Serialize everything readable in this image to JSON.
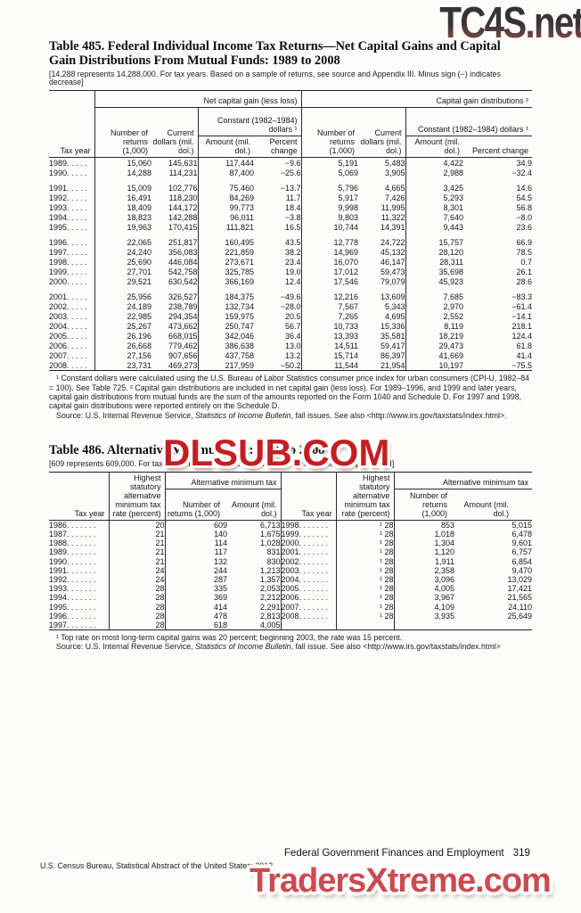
{
  "watermarks": {
    "top": "TC4S.net",
    "middle": "DLSUB.COM",
    "bottom": "TradersXtreme.com"
  },
  "accent_colors": {
    "watermark_red": "#c41e22",
    "watermark_dark_gradient_top": "#383335",
    "watermark_dark_gradient_bottom": "#97594b",
    "text": "#161616",
    "rule": "#2b2b2b"
  },
  "table485": {
    "title": "Table 485. Federal Individual Income Tax Returns—Net Capital Gains and Capital Gain Distributions From Mutual Funds: 1989 to 2008",
    "bracket_note": "[14,288 represents 14,288,000. For tax years. Based on a sample of returns, see source and Appendix III. Minus sign (−) indicates decrease]",
    "header": {
      "tax_year": "Tax year",
      "group1": "Net capital gain (less loss)",
      "group2": "Capital gain distributions ²",
      "number_of_returns": "Number of returns (1,000)",
      "current_dollars": "Current dollars (mil. dol.)",
      "constant_dollars": "Constant (1982–1984) dollars ¹",
      "amount": "Amount (mil. dol.)",
      "percent_change": "Percent change"
    },
    "groups": [
      [
        [
          "1989. . . . .",
          "15,060",
          "145,631",
          "117,444",
          "−9.6",
          "5,191",
          "5,483",
          "4,422",
          "34.9"
        ],
        [
          "1990. . . . .",
          "14,288",
          "114,231",
          "87,400",
          "−25.6",
          "5,069",
          "3,905",
          "2,988",
          "−32.4"
        ]
      ],
      [
        [
          "1991. . . . .",
          "15,009",
          "102,776",
          "75,460",
          "−13.7",
          "5,796",
          "4,665",
          "3,425",
          "14.6"
        ],
        [
          "1992. . . . .",
          "16,491",
          "118,230",
          "84,269",
          "11.7",
          "5,917",
          "7,426",
          "5,293",
          "54.5"
        ],
        [
          "1993. . . . .",
          "18,409",
          "144,172",
          "99,773",
          "18.4",
          "9,998",
          "11,995",
          "8,301",
          "56.8"
        ],
        [
          "1994. . . . .",
          "18,823",
          "142,288",
          "96,011",
          "−3.8",
          "9,803",
          "11,322",
          "7,640",
          "−8.0"
        ],
        [
          "1995. . . . .",
          "19,963",
          "170,415",
          "111,821",
          "16.5",
          "10,744",
          "14,391",
          "9,443",
          "23.6"
        ]
      ],
      [
        [
          "1996. . . . .",
          "22,065",
          "251,817",
          "160,495",
          "43.5",
          "12,778",
          "24,722",
          "15,757",
          "66.9"
        ],
        [
          "1997. . . . .",
          "24,240",
          "356,083",
          "221,859",
          "38.2",
          "14,969",
          "45,132",
          "28,120",
          "78.5"
        ],
        [
          "1998. . . . .",
          "25,690",
          "446,084",
          "273,671",
          "23.4",
          "16,070",
          "46,147",
          "28,311",
          "0.7"
        ],
        [
          "1999. . . . .",
          "27,701",
          "542,758",
          "325,785",
          "19.0",
          "17,012",
          "59,473",
          "35,698",
          "26.1"
        ],
        [
          "2000. . . . .",
          "29,521",
          "630,542",
          "366,169",
          "12.4",
          "17,546",
          "79,079",
          "45,923",
          "28.6"
        ]
      ],
      [
        [
          "2001. . . . .",
          "25,956",
          "326,527",
          "184,375",
          "−49.6",
          "12,216",
          "13,609",
          "7,685",
          "−83.3"
        ],
        [
          "2002. . . . .",
          "24,189",
          "238,789",
          "132,734",
          "−28.0",
          "7,567",
          "5,343",
          "2,970",
          "−61.4"
        ],
        [
          "2003. . . . .",
          "22,985",
          "294,354",
          "159,975",
          "20.5",
          "7,265",
          "4,695",
          "2,552",
          "−14.1"
        ],
        [
          "2004. . . . .",
          "25,267",
          "473,662",
          "250,747",
          "56.7",
          "10,733",
          "15,336",
          "8,119",
          "218.1"
        ],
        [
          "2005. . . . .",
          "26,196",
          "668,015",
          "342,046",
          "36.4",
          "13,393",
          "35,581",
          "18,219",
          "124.4"
        ],
        [
          "2006. . . . .",
          "26,668",
          "779,462",
          "386,638",
          "13.0",
          "14,511",
          "59,417",
          "29,473",
          "61.8"
        ],
        [
          "2007. . . . .",
          "27,156",
          "907,656",
          "437,758",
          "13.2",
          "15,714",
          "86,397",
          "41,669",
          "41.4"
        ],
        [
          "2008. . . . .",
          "23,731",
          "469,273",
          "217,959",
          "−50.2",
          "11,544",
          "21,954",
          "10,197",
          "−75.5"
        ]
      ]
    ],
    "footnotes": "¹ Constant dollars were calculated using the U.S. Bureau of Labor Statistics consumer price index for urban consumers (CPI-U, 1982–84 = 100). See Table 725. ² Capital gain distributions are included in net capital gain (less loss). For 1989–1996, and 1999 and later years, capital gain distributions from mutual funds are the sum of the amounts reported on the Form 1040 and Schedule D. For 1997 and 1998, capital gain distributions were reported entirely on the Schedule D.",
    "source_prefix": "Source: U.S. Internal Revenue Service, ",
    "source_italic": "Statistics of Income Bulletin",
    "source_suffix": ", fall issues. See also <http://www.irs.gov/taxstats/index.html>."
  },
  "table486": {
    "title": "Table 486. Alternative Minimum Tax: 1986 to 2008",
    "bracket_note": "[609 represents 609,000. For tax years. Based on a sample of returns, see source and Appendix III]",
    "header": {
      "tax_year": "Tax year",
      "rate": "Highest statutory alternative minimum tax rate (percent)",
      "group": "Alternative minimum tax",
      "returns": "Number of returns (1,000)",
      "amount": "Amount (mil. dol.)"
    },
    "groups": [
      [
        [
          "1986. . . . . . .",
          "20",
          "609",
          "6,713",
          "1998. . . . . . .",
          "¹ 28",
          "853",
          "5,015"
        ],
        [
          "1987. . . . . . .",
          "21",
          "140",
          "1,675",
          "1999. . . . . . .",
          "¹ 28",
          "1,018",
          "6,478"
        ],
        [
          "1988. . . . . . .",
          "21",
          "114",
          "1,028",
          "2000. . . . . . .",
          "¹ 28",
          "1,304",
          "9,601"
        ],
        [
          "1989. . . . . . .",
          "21",
          "117",
          "831",
          "2001. . . . . . .",
          "¹ 28",
          "1,120",
          "6,757"
        ],
        [
          "1990. . . . . . .",
          "21",
          "132",
          "830",
          "2002. . . . . . .",
          "¹ 28",
          "1,911",
          "6,854"
        ],
        [
          "1991. . . . . . .",
          "24",
          "244",
          "1,213",
          "2003. . . . . . .",
          "¹ 28",
          "2,358",
          "9,470"
        ],
        [
          "1992. . . . . . .",
          "24",
          "287",
          "1,357",
          "2004. . . . . . .",
          "¹ 28",
          "3,096",
          "13,029"
        ],
        [
          "1993. . . . . . .",
          "28",
          "335",
          "2,053",
          "2005. . . . . . .",
          "¹ 28",
          "4,005",
          "17,421"
        ],
        [
          "1994. . . . . . .",
          "28",
          "369",
          "2,212",
          "2006. . . . . . .",
          "¹ 28",
          "3,967",
          "21,565"
        ],
        [
          "1995. . . . . . .",
          "28",
          "414",
          "2,291",
          "2007. . . . . . .",
          "¹ 28",
          "4,109",
          "24,110"
        ],
        [
          "1996. . . . . . .",
          "28",
          "478",
          "2,813",
          "2008. . . . . . .",
          "¹ 28",
          "3,935",
          "25,649"
        ],
        [
          "1997. . . . . . .",
          "28",
          "618",
          "4,005",
          "",
          "",
          "",
          ""
        ]
      ]
    ],
    "footnotes": "¹ Top rate on most long-term capital gains was 20 percent; beginning 2003, the rate was 15 percent.",
    "source_prefix": "Source: U.S. Internal Revenue Service, ",
    "source_italic": "Statistics of Income Bulletin",
    "source_suffix": ", fall issue. See also <http://www.irs.gov/taxstats/index.html>"
  },
  "footer": {
    "right_text": "Federal Government Finances and Employment",
    "page_number": "319",
    "left_text": "U.S. Census Bureau, Statistical Abstract of the United States: 2012"
  }
}
